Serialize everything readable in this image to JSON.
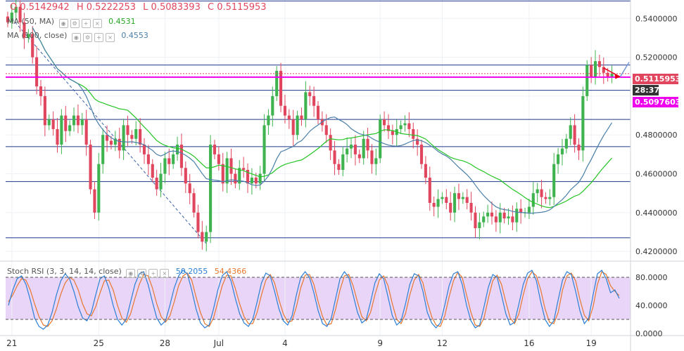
{
  "header": {
    "open": "O 0.5142942",
    "high": "H 0.5222253",
    "low": "L 0.5083393",
    "close": "C 0.5115953"
  },
  "indicators": [
    {
      "label": "MA (50, MA)",
      "value": "0.4531",
      "color": "#26a826"
    },
    {
      "label": "MA (100, close)",
      "value": "0.4553",
      "color": "#4a7fa8"
    }
  ],
  "stoch": {
    "label": "Stoch RSI (3, 3, 14, 14, close)",
    "k_value": "50.2055",
    "d_value": "54.4366",
    "k_color": "#2b7fd6",
    "d_color": "#e8772e"
  },
  "price_tags": [
    {
      "text": "0.5115953",
      "color": "#e0465e"
    },
    {
      "text": "28:37",
      "color": "#333333"
    },
    {
      "text": "0.5097603",
      "color": "#ee00ee"
    }
  ],
  "chart_data": [
    {
      "type": "candlestick",
      "ylim": [
        0.415,
        0.5495
      ],
      "yticks": [
        0.42,
        0.44,
        0.46,
        0.48,
        0.5,
        0.52,
        0.54
      ],
      "ytick_labels": [
        "0.4200000",
        "0.4400000",
        "0.4600000",
        "0.4800000",
        "",
        "0.5200000",
        "0.5400000"
      ],
      "x_labels": [
        "21",
        "25",
        "28",
        "Jul",
        "4",
        "9",
        "12",
        "16",
        "19"
      ],
      "x_label_index": [
        1,
        22,
        38,
        51,
        67,
        90,
        105,
        126,
        141
      ],
      "horizontal_levels": [
        0.549,
        0.516,
        0.503,
        0.488,
        0.474,
        0.456,
        0.427
      ],
      "current_price": 0.5115953,
      "support_line": 0.5097603,
      "closes": [
        0.538,
        0.543,
        0.546,
        0.538,
        0.53,
        0.532,
        0.52,
        0.505,
        0.5,
        0.485,
        0.488,
        0.483,
        0.475,
        0.49,
        0.482,
        0.485,
        0.49,
        0.485,
        0.488,
        0.475,
        0.452,
        0.44,
        0.465,
        0.48,
        0.477,
        0.475,
        0.478,
        0.472,
        0.485,
        0.48,
        0.478,
        0.483,
        0.475,
        0.47,
        0.465,
        0.458,
        0.452,
        0.46,
        0.468,
        0.465,
        0.47,
        0.475,
        0.463,
        0.455,
        0.45,
        0.44,
        0.43,
        0.425,
        0.43,
        0.475,
        0.47,
        0.465,
        0.455,
        0.468,
        0.46,
        0.455,
        0.463,
        0.462,
        0.455,
        0.458,
        0.455,
        0.46,
        0.485,
        0.49,
        0.5,
        0.513,
        0.495,
        0.49,
        0.488,
        0.48,
        0.49,
        0.488,
        0.502,
        0.5,
        0.495,
        0.488,
        0.485,
        0.48,
        0.472,
        0.465,
        0.462,
        0.47,
        0.473,
        0.475,
        0.47,
        0.468,
        0.478,
        0.472,
        0.465,
        0.468,
        0.488,
        0.485,
        0.482,
        0.48,
        0.483,
        0.485,
        0.486,
        0.483,
        0.478,
        0.475,
        0.465,
        0.458,
        0.445,
        0.443,
        0.447,
        0.448,
        0.445,
        0.44,
        0.45,
        0.447,
        0.448,
        0.445,
        0.44,
        0.432,
        0.435,
        0.438,
        0.44,
        0.438,
        0.435,
        0.44,
        0.437,
        0.438,
        0.435,
        0.442,
        0.44,
        0.44,
        0.443,
        0.45,
        0.452,
        0.448,
        0.447,
        0.448,
        0.465,
        0.47,
        0.473,
        0.478,
        0.485,
        0.475,
        0.472,
        0.5,
        0.516,
        0.51,
        0.518,
        0.515,
        0.512,
        0.51,
        0.5116
      ]
    },
    {
      "type": "line",
      "title": "Stoch RSI",
      "ylim": [
        -3,
        98
      ],
      "yticks": [
        0,
        40,
        80
      ],
      "ytick_labels": [
        "0.0000",
        "40.0000",
        "80.0000"
      ],
      "series": [
        {
          "name": "K",
          "values": [
            40,
            62,
            78,
            82,
            70,
            48,
            22,
            10,
            6,
            12,
            30,
            55,
            75,
            85,
            78,
            60,
            38,
            22,
            18,
            30,
            55,
            78,
            82,
            65,
            40,
            20,
            12,
            20,
            45,
            70,
            85,
            88,
            70,
            45,
            22,
            12,
            18,
            40,
            65,
            82,
            90,
            85,
            62,
            35,
            15,
            8,
            12,
            35,
            62,
            82,
            88,
            75,
            50,
            28,
            15,
            10,
            20,
            45,
            72,
            86,
            82,
            60,
            35,
            18,
            12,
            25,
            55,
            80,
            88,
            80,
            58,
            32,
            14,
            10,
            22,
            50,
            78,
            88,
            80,
            55,
            30,
            15,
            20,
            45,
            72,
            85,
            78,
            52,
            25,
            12,
            18,
            42,
            70,
            85,
            82,
            60,
            30,
            15,
            8,
            15,
            40,
            68,
            85,
            88,
            70,
            40,
            18,
            8,
            12,
            38,
            66,
            84,
            80,
            55,
            28,
            12,
            16,
            42,
            70,
            86,
            90,
            75,
            45,
            20,
            10,
            18,
            48,
            76,
            88,
            84,
            60,
            32,
            14,
            22,
            55,
            85,
            90,
            78,
            58,
            62,
            50
          ]
        },
        {
          "name": "D",
          "values": [
            45,
            55,
            68,
            78,
            76,
            62,
            42,
            24,
            12,
            10,
            18,
            35,
            56,
            72,
            80,
            76,
            62,
            42,
            28,
            25,
            38,
            58,
            75,
            76,
            62,
            40,
            22,
            16,
            28,
            50,
            70,
            84,
            82,
            65,
            42,
            24,
            16,
            25,
            45,
            68,
            82,
            86,
            76,
            52,
            30,
            14,
            10,
            22,
            45,
            68,
            83,
            82,
            64,
            42,
            24,
            14,
            14,
            30,
            55,
            76,
            84,
            72,
            48,
            28,
            16,
            18,
            38,
            65,
            83,
            84,
            70,
            45,
            24,
            12,
            14,
            35,
            62,
            82,
            84,
            68,
            45,
            24,
            18,
            30,
            55,
            76,
            82,
            68,
            42,
            20,
            14,
            28,
            55,
            76,
            84,
            72,
            45,
            24,
            12,
            10,
            25,
            52,
            75,
            87,
            80,
            55,
            30,
            12,
            10,
            22,
            50,
            75,
            83,
            70,
            45,
            22,
            14,
            28,
            55,
            78,
            88,
            82,
            62,
            35,
            16,
            14,
            30,
            62,
            82,
            86,
            75,
            48,
            26,
            18,
            38,
            70,
            88,
            84,
            68,
            60,
            54
          ]
        }
      ]
    }
  ]
}
